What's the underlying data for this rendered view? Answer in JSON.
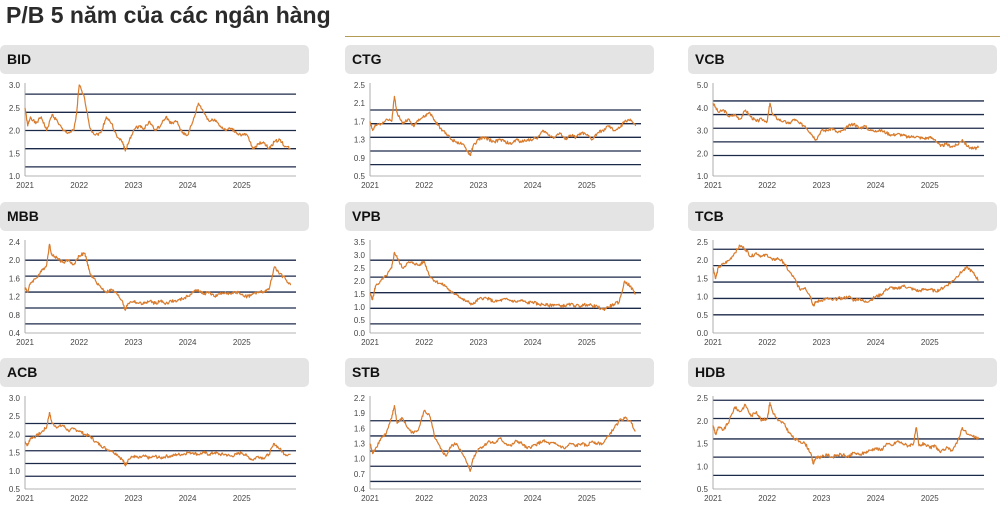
{
  "page": {
    "title": "P/B 5 năm của các ngân hàng"
  },
  "style": {
    "line_color": "#d97b2c",
    "band_color": "#1c2a4a",
    "axis_color": "#9a9a9a",
    "header_bg": "#e4e4e4"
  },
  "chart_data": [
    {
      "type": "line",
      "title": "BID",
      "x_ticks": [
        "2021",
        "2022",
        "2023",
        "2024",
        "2025"
      ],
      "x_range": [
        2021,
        2026
      ],
      "y_ticks": [
        "1.0",
        "1.5",
        "2.0",
        "2.5",
        "3.0"
      ],
      "ylim": [
        1.0,
        3.0
      ],
      "bands": [
        2.8,
        2.4,
        2.0,
        1.6,
        1.2
      ],
      "x": [
        2021.0,
        2021.05,
        2021.1,
        2021.2,
        2021.3,
        2021.4,
        2021.5,
        2021.6,
        2021.7,
        2021.8,
        2021.9,
        2021.95,
        2022.0,
        2022.1,
        2022.2,
        2022.3,
        2022.4,
        2022.5,
        2022.6,
        2022.7,
        2022.8,
        2022.85,
        2022.9,
        2023.0,
        2023.1,
        2023.2,
        2023.3,
        2023.4,
        2023.5,
        2023.6,
        2023.7,
        2023.8,
        2023.9,
        2024.0,
        2024.1,
        2024.2,
        2024.3,
        2024.4,
        2024.5,
        2024.6,
        2024.7,
        2024.8,
        2024.9,
        2025.0,
        2025.1,
        2025.2,
        2025.3,
        2025.4,
        2025.5,
        2025.6,
        2025.7,
        2025.8,
        2025.9
      ],
      "values": [
        2.5,
        2.1,
        2.3,
        2.15,
        2.3,
        2.0,
        2.35,
        2.2,
        2.0,
        1.95,
        2.0,
        2.35,
        3.0,
        2.7,
        2.05,
        1.9,
        1.95,
        2.3,
        2.15,
        1.85,
        1.75,
        1.55,
        1.7,
        2.0,
        2.1,
        2.05,
        2.2,
        2.0,
        2.1,
        2.3,
        2.15,
        2.2,
        1.95,
        1.9,
        2.2,
        2.6,
        2.4,
        2.2,
        2.25,
        2.1,
        2.0,
        2.05,
        1.95,
        1.9,
        1.9,
        1.6,
        1.7,
        1.75,
        1.6,
        1.75,
        1.8,
        1.65,
        1.6
      ]
    },
    {
      "type": "line",
      "title": "CTG",
      "x_ticks": [
        "2021",
        "2022",
        "2023",
        "2024",
        "2025"
      ],
      "x_range": [
        2021,
        2026
      ],
      "y_ticks": [
        "0.5",
        "0.9",
        "1.3",
        "1.7",
        "2.1",
        "2.5"
      ],
      "ylim": [
        0.5,
        2.5
      ],
      "bands": [
        1.95,
        1.65,
        1.35,
        1.05,
        0.75
      ],
      "x": [
        2021.0,
        2021.05,
        2021.1,
        2021.2,
        2021.3,
        2021.4,
        2021.45,
        2021.5,
        2021.6,
        2021.7,
        2021.8,
        2021.9,
        2022.0,
        2022.1,
        2022.2,
        2022.3,
        2022.4,
        2022.5,
        2022.6,
        2022.7,
        2022.8,
        2022.85,
        2022.9,
        2023.0,
        2023.1,
        2023.2,
        2023.3,
        2023.4,
        2023.5,
        2023.6,
        2023.7,
        2023.8,
        2023.9,
        2024.0,
        2024.1,
        2024.2,
        2024.3,
        2024.4,
        2024.5,
        2024.6,
        2024.7,
        2024.8,
        2024.9,
        2025.0,
        2025.1,
        2025.2,
        2025.3,
        2025.4,
        2025.5,
        2025.6,
        2025.7,
        2025.8,
        2025.9
      ],
      "values": [
        1.7,
        1.5,
        1.6,
        1.65,
        1.75,
        1.7,
        2.25,
        1.9,
        1.65,
        1.75,
        1.6,
        1.75,
        1.8,
        1.9,
        1.7,
        1.55,
        1.45,
        1.3,
        1.25,
        1.2,
        1.05,
        0.95,
        1.15,
        1.3,
        1.35,
        1.3,
        1.25,
        1.3,
        1.25,
        1.2,
        1.3,
        1.25,
        1.3,
        1.3,
        1.35,
        1.5,
        1.4,
        1.35,
        1.45,
        1.3,
        1.4,
        1.35,
        1.45,
        1.4,
        1.3,
        1.45,
        1.5,
        1.6,
        1.5,
        1.55,
        1.7,
        1.75,
        1.6
      ]
    },
    {
      "type": "line",
      "title": "VCB",
      "x_ticks": [
        "2021",
        "2022",
        "2023",
        "2024",
        "2025"
      ],
      "x_range": [
        2021,
        2026
      ],
      "y_ticks": [
        "1.0",
        "2.0",
        "3.0",
        "4.0",
        "5.0"
      ],
      "ylim": [
        1.0,
        5.0
      ],
      "bands": [
        4.3,
        3.7,
        3.1,
        2.5,
        1.9
      ],
      "x": [
        2021.0,
        2021.1,
        2021.2,
        2021.3,
        2021.4,
        2021.5,
        2021.6,
        2021.7,
        2021.8,
        2021.9,
        2022.0,
        2022.05,
        2022.1,
        2022.2,
        2022.3,
        2022.4,
        2022.5,
        2022.6,
        2022.7,
        2022.8,
        2022.9,
        2023.0,
        2023.1,
        2023.2,
        2023.3,
        2023.4,
        2023.5,
        2023.6,
        2023.7,
        2023.8,
        2023.9,
        2024.0,
        2024.1,
        2024.2,
        2024.3,
        2024.4,
        2024.5,
        2024.6,
        2024.7,
        2024.8,
        2024.9,
        2025.0,
        2025.1,
        2025.2,
        2025.3,
        2025.4,
        2025.5,
        2025.6,
        2025.7,
        2025.8,
        2025.9
      ],
      "values": [
        4.2,
        3.8,
        3.9,
        3.6,
        3.7,
        3.5,
        3.9,
        3.6,
        3.4,
        3.5,
        3.4,
        4.2,
        3.7,
        3.5,
        3.4,
        3.3,
        3.5,
        3.3,
        3.2,
        2.9,
        2.6,
        3.0,
        3.0,
        3.1,
        2.9,
        3.0,
        3.2,
        3.3,
        3.1,
        3.2,
        3.0,
        3.0,
        3.0,
        2.9,
        2.8,
        2.85,
        2.8,
        2.7,
        2.75,
        2.7,
        2.65,
        2.7,
        2.6,
        2.3,
        2.4,
        2.3,
        2.35,
        2.6,
        2.3,
        2.2,
        2.25
      ]
    },
    {
      "type": "line",
      "title": "MBB",
      "x_ticks": [
        "2021",
        "2022",
        "2023",
        "2024",
        "2025"
      ],
      "x_range": [
        2021,
        2026
      ],
      "y_ticks": [
        "0.4",
        "0.8",
        "1.2",
        "1.6",
        "2.0",
        "2.4"
      ],
      "ylim": [
        0.4,
        2.4
      ],
      "bands": [
        2.0,
        1.65,
        1.3,
        0.95,
        0.6
      ],
      "x": [
        2021.0,
        2021.05,
        2021.1,
        2021.2,
        2021.3,
        2021.4,
        2021.45,
        2021.5,
        2021.6,
        2021.7,
        2021.8,
        2021.9,
        2022.0,
        2022.1,
        2022.15,
        2022.2,
        2022.3,
        2022.4,
        2022.5,
        2022.6,
        2022.7,
        2022.8,
        2022.85,
        2022.9,
        2023.0,
        2023.1,
        2023.2,
        2023.3,
        2023.4,
        2023.5,
        2023.6,
        2023.7,
        2023.8,
        2023.9,
        2024.0,
        2024.1,
        2024.2,
        2024.3,
        2024.4,
        2024.5,
        2024.6,
        2024.7,
        2024.8,
        2024.9,
        2025.0,
        2025.1,
        2025.2,
        2025.3,
        2025.4,
        2025.5,
        2025.6,
        2025.7,
        2025.8,
        2025.9
      ],
      "values": [
        1.4,
        1.3,
        1.5,
        1.6,
        1.75,
        1.9,
        2.35,
        2.1,
        2.05,
        1.95,
        2.0,
        1.9,
        2.1,
        2.15,
        1.95,
        1.7,
        1.55,
        1.4,
        1.3,
        1.35,
        1.25,
        1.1,
        0.9,
        1.05,
        1.1,
        1.05,
        1.05,
        1.1,
        1.05,
        1.1,
        1.05,
        1.1,
        1.1,
        1.15,
        1.2,
        1.3,
        1.35,
        1.25,
        1.3,
        1.2,
        1.25,
        1.3,
        1.25,
        1.3,
        1.25,
        1.2,
        1.25,
        1.3,
        1.3,
        1.35,
        1.85,
        1.7,
        1.6,
        1.45
      ]
    },
    {
      "type": "line",
      "title": "VPB",
      "x_ticks": [
        "2021",
        "2022",
        "2023",
        "2024",
        "2025"
      ],
      "x_range": [
        2021,
        2026
      ],
      "y_ticks": [
        "0.0",
        "0.5",
        "1.0",
        "1.5",
        "2.0",
        "2.5",
        "3.0",
        "3.5"
      ],
      "ylim": [
        0.0,
        3.5
      ],
      "bands": [
        2.8,
        2.15,
        1.55,
        0.95,
        0.35
      ],
      "x": [
        2021.0,
        2021.05,
        2021.1,
        2021.2,
        2021.3,
        2021.4,
        2021.45,
        2021.5,
        2021.6,
        2021.7,
        2021.8,
        2021.9,
        2022.0,
        2022.1,
        2022.2,
        2022.3,
        2022.4,
        2022.5,
        2022.6,
        2022.7,
        2022.8,
        2022.9,
        2023.0,
        2023.1,
        2023.2,
        2023.3,
        2023.4,
        2023.5,
        2023.6,
        2023.7,
        2023.8,
        2023.9,
        2024.0,
        2024.1,
        2024.2,
        2024.3,
        2024.4,
        2024.5,
        2024.6,
        2024.7,
        2024.8,
        2024.9,
        2025.0,
        2025.1,
        2025.2,
        2025.3,
        2025.4,
        2025.5,
        2025.6,
        2025.7,
        2025.8,
        2025.9
      ],
      "values": [
        1.5,
        1.3,
        1.8,
        2.0,
        2.2,
        2.5,
        3.1,
        2.9,
        2.5,
        2.7,
        2.7,
        2.6,
        2.75,
        2.2,
        2.0,
        1.9,
        1.8,
        1.55,
        1.5,
        1.3,
        1.2,
        1.1,
        1.3,
        1.35,
        1.3,
        1.2,
        1.25,
        1.3,
        1.25,
        1.2,
        1.25,
        1.15,
        1.2,
        1.1,
        1.1,
        1.05,
        1.1,
        1.05,
        1.05,
        1.1,
        1.05,
        1.05,
        1.1,
        1.05,
        1.0,
        0.9,
        1.0,
        1.1,
        1.2,
        2.0,
        1.8,
        1.5
      ]
    },
    {
      "type": "line",
      "title": "TCB",
      "x_ticks": [
        "2021",
        "2022",
        "2023",
        "2024",
        "2025"
      ],
      "x_range": [
        2021,
        2026
      ],
      "y_ticks": [
        "0.0",
        "0.5",
        "1.0",
        "1.5",
        "2.0",
        "2.5"
      ],
      "ylim": [
        0.0,
        2.5
      ],
      "bands": [
        2.3,
        1.85,
        1.4,
        0.95,
        0.5
      ],
      "x": [
        2021.0,
        2021.05,
        2021.1,
        2021.2,
        2021.3,
        2021.4,
        2021.5,
        2021.6,
        2021.7,
        2021.8,
        2021.9,
        2022.0,
        2022.1,
        2022.2,
        2022.3,
        2022.4,
        2022.5,
        2022.6,
        2022.7,
        2022.8,
        2022.85,
        2022.9,
        2023.0,
        2023.1,
        2023.2,
        2023.3,
        2023.4,
        2023.5,
        2023.6,
        2023.7,
        2023.8,
        2023.9,
        2024.0,
        2024.1,
        2024.2,
        2024.3,
        2024.4,
        2024.5,
        2024.6,
        2024.7,
        2024.8,
        2024.9,
        2025.0,
        2025.1,
        2025.2,
        2025.3,
        2025.4,
        2025.5,
        2025.6,
        2025.7,
        2025.8,
        2025.9
      ],
      "values": [
        1.8,
        1.5,
        1.8,
        1.9,
        2.0,
        2.2,
        2.4,
        2.3,
        2.1,
        2.2,
        2.1,
        2.15,
        2.0,
        2.05,
        1.95,
        1.7,
        1.5,
        1.2,
        1.25,
        1.0,
        0.75,
        0.85,
        0.9,
        0.95,
        0.9,
        0.95,
        0.95,
        1.0,
        0.9,
        0.95,
        0.85,
        0.9,
        1.0,
        1.05,
        1.2,
        1.25,
        1.2,
        1.3,
        1.25,
        1.2,
        1.15,
        1.2,
        1.2,
        1.15,
        1.2,
        1.3,
        1.4,
        1.55,
        1.7,
        1.8,
        1.65,
        1.45
      ]
    },
    {
      "type": "line",
      "title": "ACB",
      "x_ticks": [
        "2021",
        "2022",
        "2023",
        "2024",
        "2025"
      ],
      "x_range": [
        2021,
        2026
      ],
      "y_ticks": [
        "0.5",
        "1.0",
        "1.5",
        "2.0",
        "2.5",
        "3.0"
      ],
      "ylim": [
        0.5,
        3.0
      ],
      "bands": [
        2.3,
        1.95,
        1.55,
        1.2,
        0.85
      ],
      "x": [
        2021.0,
        2021.05,
        2021.1,
        2021.2,
        2021.3,
        2021.4,
        2021.45,
        2021.5,
        2021.6,
        2021.7,
        2021.8,
        2021.9,
        2022.0,
        2022.1,
        2022.2,
        2022.3,
        2022.4,
        2022.5,
        2022.6,
        2022.7,
        2022.8,
        2022.85,
        2022.9,
        2023.0,
        2023.1,
        2023.2,
        2023.3,
        2023.4,
        2023.5,
        2023.6,
        2023.7,
        2023.8,
        2023.9,
        2024.0,
        2024.1,
        2024.2,
        2024.3,
        2024.4,
        2024.5,
        2024.6,
        2024.7,
        2024.8,
        2024.9,
        2025.0,
        2025.1,
        2025.2,
        2025.3,
        2025.4,
        2025.5,
        2025.6,
        2025.7,
        2025.8,
        2025.9
      ],
      "values": [
        1.8,
        1.7,
        1.9,
        1.95,
        2.05,
        2.2,
        2.6,
        2.3,
        2.2,
        2.25,
        2.1,
        2.15,
        2.1,
        2.0,
        1.95,
        1.8,
        1.7,
        1.6,
        1.55,
        1.45,
        1.3,
        1.15,
        1.3,
        1.4,
        1.35,
        1.4,
        1.35,
        1.4,
        1.35,
        1.4,
        1.4,
        1.45,
        1.45,
        1.5,
        1.5,
        1.45,
        1.5,
        1.45,
        1.5,
        1.45,
        1.45,
        1.4,
        1.45,
        1.5,
        1.4,
        1.3,
        1.4,
        1.35,
        1.45,
        1.75,
        1.6,
        1.45,
        1.45
      ]
    },
    {
      "type": "line",
      "title": "STB",
      "x_ticks": [
        "2021",
        "2022",
        "2023",
        "2024",
        "2025"
      ],
      "x_range": [
        2021,
        2026
      ],
      "y_ticks": [
        "0.4",
        "0.7",
        "1.0",
        "1.3",
        "1.6",
        "1.9",
        "2.2"
      ],
      "ylim": [
        0.4,
        2.2
      ],
      "bands": [
        1.75,
        1.45,
        1.15,
        0.85,
        0.55
      ],
      "x": [
        2021.0,
        2021.05,
        2021.1,
        2021.2,
        2021.3,
        2021.4,
        2021.45,
        2021.5,
        2021.6,
        2021.7,
        2021.8,
        2021.9,
        2022.0,
        2022.1,
        2022.2,
        2022.3,
        2022.4,
        2022.5,
        2022.6,
        2022.7,
        2022.8,
        2022.85,
        2022.9,
        2023.0,
        2023.1,
        2023.2,
        2023.3,
        2023.4,
        2023.5,
        2023.6,
        2023.7,
        2023.8,
        2023.9,
        2024.0,
        2024.1,
        2024.2,
        2024.3,
        2024.4,
        2024.5,
        2024.6,
        2024.7,
        2024.8,
        2024.9,
        2025.0,
        2025.1,
        2025.2,
        2025.3,
        2025.4,
        2025.5,
        2025.6,
        2025.7,
        2025.8,
        2025.9
      ],
      "values": [
        1.3,
        1.1,
        1.2,
        1.4,
        1.5,
        1.8,
        2.05,
        1.7,
        1.8,
        1.6,
        1.5,
        1.6,
        1.95,
        1.85,
        1.4,
        1.2,
        1.05,
        1.25,
        1.3,
        1.1,
        0.9,
        0.75,
        1.0,
        1.2,
        1.25,
        1.35,
        1.3,
        1.4,
        1.3,
        1.25,
        1.35,
        1.3,
        1.2,
        1.25,
        1.3,
        1.35,
        1.3,
        1.3,
        1.25,
        1.2,
        1.3,
        1.25,
        1.3,
        1.25,
        1.35,
        1.3,
        1.3,
        1.45,
        1.6,
        1.75,
        1.8,
        1.75,
        1.55
      ]
    },
    {
      "type": "line",
      "title": "HDB",
      "x_ticks": [
        "2021",
        "2022",
        "2023",
        "2024",
        "2025"
      ],
      "x_range": [
        2021,
        2026
      ],
      "y_ticks": [
        "0.5",
        "1.0",
        "1.5",
        "2.0",
        "2.5"
      ],
      "ylim": [
        0.5,
        2.5
      ],
      "bands": [
        2.45,
        2.05,
        1.6,
        1.2,
        0.8
      ],
      "x": [
        2021.0,
        2021.05,
        2021.1,
        2021.2,
        2021.3,
        2021.4,
        2021.5,
        2021.6,
        2021.7,
        2021.8,
        2021.9,
        2022.0,
        2022.05,
        2022.1,
        2022.2,
        2022.3,
        2022.4,
        2022.5,
        2022.6,
        2022.7,
        2022.8,
        2022.85,
        2022.9,
        2023.0,
        2023.1,
        2023.2,
        2023.3,
        2023.4,
        2023.5,
        2023.6,
        2023.7,
        2023.8,
        2023.9,
        2024.0,
        2024.1,
        2024.2,
        2024.3,
        2024.4,
        2024.5,
        2024.6,
        2024.7,
        2024.75,
        2024.8,
        2024.9,
        2025.0,
        2025.1,
        2025.2,
        2025.3,
        2025.4,
        2025.5,
        2025.6,
        2025.7,
        2025.8,
        2025.9
      ],
      "values": [
        1.9,
        1.7,
        1.85,
        1.8,
        2.0,
        2.3,
        2.2,
        2.35,
        2.1,
        2.2,
        2.0,
        2.05,
        2.4,
        2.2,
        2.0,
        1.95,
        1.75,
        1.6,
        1.55,
        1.5,
        1.3,
        1.05,
        1.2,
        1.2,
        1.25,
        1.2,
        1.25,
        1.25,
        1.2,
        1.3,
        1.25,
        1.3,
        1.35,
        1.4,
        1.35,
        1.5,
        1.45,
        1.55,
        1.5,
        1.45,
        1.5,
        1.85,
        1.45,
        1.5,
        1.4,
        1.45,
        1.3,
        1.4,
        1.35,
        1.5,
        1.85,
        1.7,
        1.65,
        1.6
      ]
    }
  ]
}
